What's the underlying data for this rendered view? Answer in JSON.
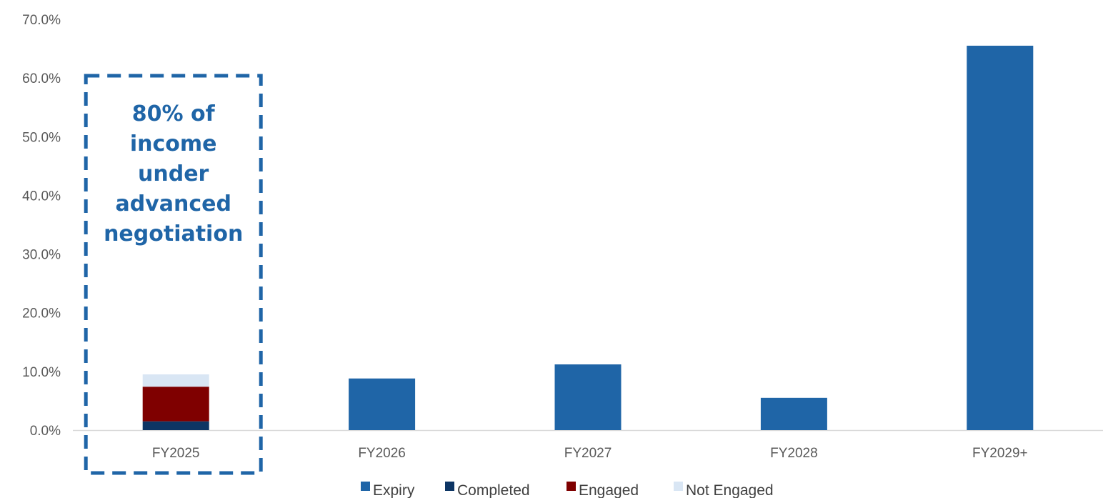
{
  "chart_data": {
    "type": "bar",
    "stacked": true,
    "categories": [
      "FY2025",
      "FY2026",
      "FY2027",
      "FY2028",
      "FY2029+"
    ],
    "series": [
      {
        "name": "Expiry",
        "color": "#1f65a7",
        "values": [
          0,
          8.8,
          11.2,
          5.5,
          65.5
        ]
      },
      {
        "name": "Completed",
        "color": "#0d3564",
        "values": [
          1.5,
          0,
          0,
          0,
          0
        ]
      },
      {
        "name": "Engaged",
        "color": "#7f0000",
        "values": [
          5.9,
          0,
          0,
          0,
          0
        ]
      },
      {
        "name": "Not Engaged",
        "color": "#d9e6f4",
        "values": [
          2.1,
          0,
          0,
          0,
          0
        ]
      }
    ],
    "y_ticks": [
      "0.0%",
      "10.0%",
      "20.0%",
      "30.0%",
      "40.0%",
      "50.0%",
      "60.0%",
      "70.0%"
    ],
    "ylim": [
      0,
      70
    ],
    "grid": false,
    "legend_position": "bottom",
    "annotation": {
      "lines": [
        "80% of",
        "income",
        "under",
        "advanced",
        "negotiation"
      ],
      "target_category": "FY2025",
      "color": "#1f65a7"
    }
  }
}
